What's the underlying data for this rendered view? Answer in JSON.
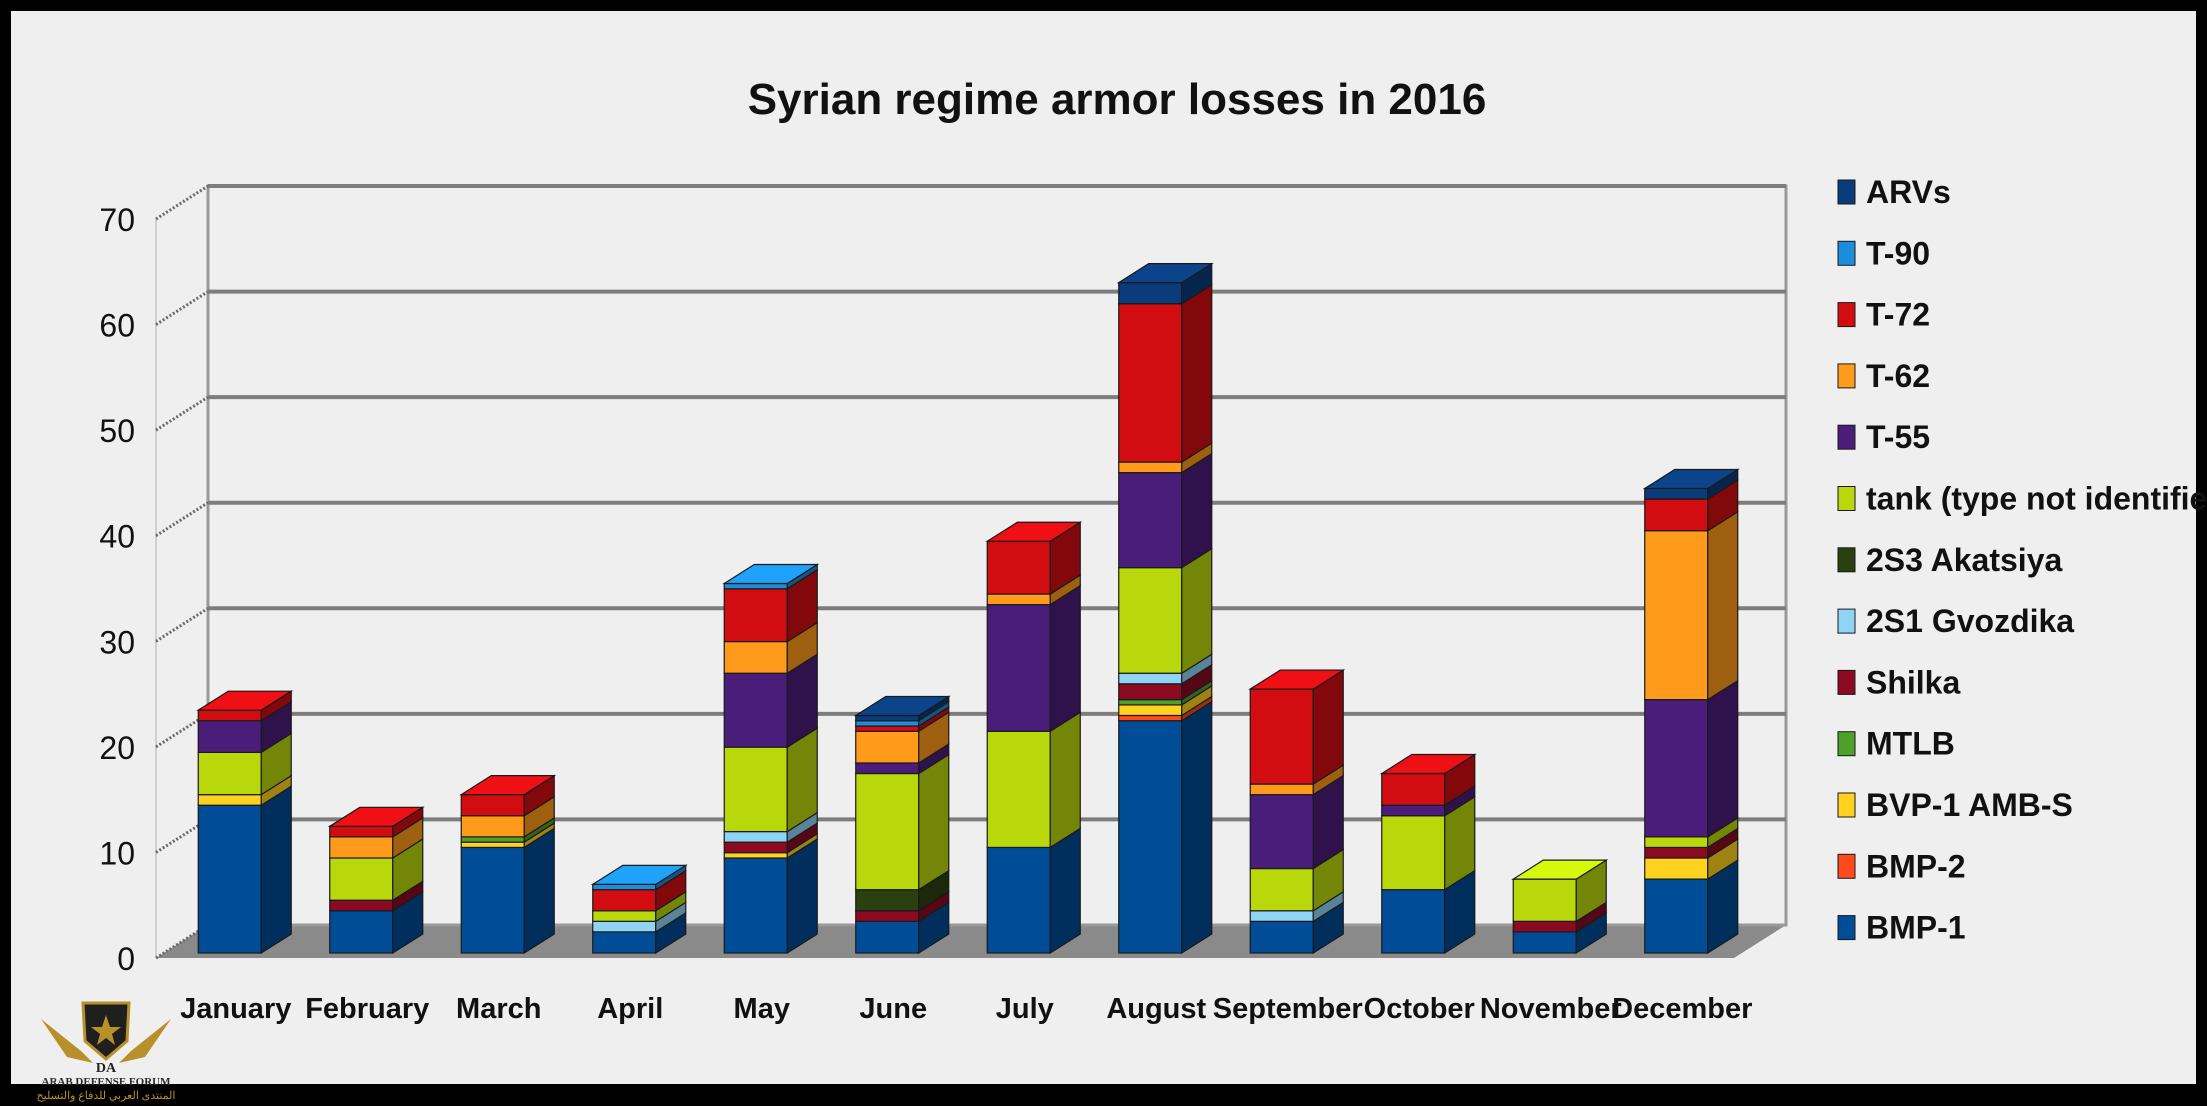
{
  "chart_data": {
    "type": "bar",
    "stacked": true,
    "three_d": true,
    "title": "Syrian regime armor losses in 2016",
    "xlabel": "",
    "ylabel": "",
    "ylim": [
      0,
      70
    ],
    "yticks": [
      0,
      10,
      20,
      30,
      40,
      50,
      60,
      70
    ],
    "grid": true,
    "legend_position": "right",
    "categories": [
      "January",
      "February",
      "March",
      "April",
      "May",
      "June",
      "July",
      "August",
      "September",
      "October",
      "November",
      "December"
    ],
    "series": [
      {
        "name": "BMP-1",
        "color": "#004c97",
        "values": [
          14,
          4,
          10,
          2,
          9,
          3,
          10,
          22,
          3,
          6,
          2,
          7
        ]
      },
      {
        "name": "BMP-2",
        "color": "#ff4a1c",
        "values": [
          0,
          0,
          0,
          0,
          0,
          0,
          0,
          0.5,
          0,
          0,
          0,
          0
        ]
      },
      {
        "name": "BVP-1 AMB-S",
        "color": "#ffd21f",
        "values": [
          1,
          0,
          0.5,
          0,
          0.5,
          0,
          0,
          1,
          0,
          0,
          0,
          2
        ]
      },
      {
        "name": "MTLB",
        "color": "#4fa02a",
        "values": [
          0,
          0,
          0.5,
          0,
          0,
          0,
          0,
          0.5,
          0,
          0,
          0,
          0
        ]
      },
      {
        "name": "Shilka",
        "color": "#8b0a21",
        "values": [
          0,
          1,
          0,
          0,
          1,
          1,
          0,
          1.5,
          0,
          0,
          1,
          1
        ]
      },
      {
        "name": "2S1 Gvozdika",
        "color": "#8fd4f5",
        "values": [
          0,
          0,
          0,
          1,
          1,
          0,
          0,
          1,
          1,
          0,
          0,
          0
        ]
      },
      {
        "name": "2S3 Akatsiya",
        "color": "#2b4010",
        "values": [
          0,
          0,
          0,
          0,
          0,
          2,
          0,
          0,
          0,
          0,
          0,
          0
        ]
      },
      {
        "name": "tank (type not identified)",
        "color": "#b9d80b",
        "values": [
          4,
          4,
          0,
          1,
          8,
          11,
          11,
          10,
          4,
          7,
          4,
          1
        ]
      },
      {
        "name": "T-55",
        "color": "#4b1d7a",
        "values": [
          3,
          0,
          0,
          0,
          7,
          1,
          12,
          9,
          7,
          1,
          0,
          13
        ]
      },
      {
        "name": "T-62",
        "color": "#ff9a1a",
        "values": [
          0,
          2,
          2,
          0,
          3,
          3,
          1,
          1,
          1,
          0,
          0,
          16
        ]
      },
      {
        "name": "T-72",
        "color": "#d10d12",
        "values": [
          1,
          1,
          2,
          2,
          5,
          0.5,
          5,
          15,
          9,
          3,
          0,
          3
        ]
      },
      {
        "name": "T-90",
        "color": "#1b8ddb",
        "values": [
          0,
          0,
          0,
          0.5,
          0.5,
          0.5,
          0,
          0,
          0,
          0,
          0,
          0
        ]
      },
      {
        "name": "ARVs",
        "color": "#0a3b7a",
        "values": [
          0,
          0,
          0,
          0,
          0,
          0.5,
          0,
          2,
          0,
          0,
          0,
          1
        ]
      }
    ]
  },
  "logo": {
    "mark": "DA",
    "name": "ARAB DEFENSE FORUM",
    "sub": "المنتدى العربي للدفاع والتسليح"
  }
}
